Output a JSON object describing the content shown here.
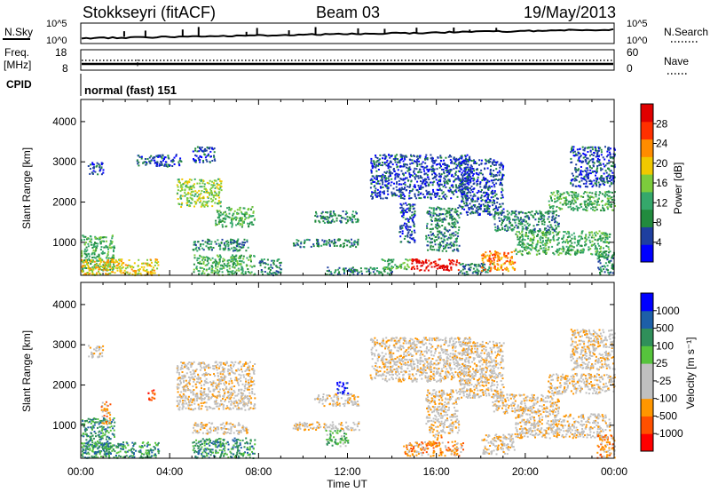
{
  "header": {
    "radar_title": "Stokkseyri (fitACF)",
    "beam_title": "Beam 03",
    "date": "19/May/2013"
  },
  "top_panels": {
    "nsky_label": "N.Sky",
    "nsky_ticks": [
      "10^5",
      "10^0"
    ],
    "nsearch_label": "N.Search",
    "nsearch_ticks": [
      "10^5",
      "10^0"
    ],
    "freq_label": "Freq.",
    "freq_units": "[MHz]",
    "freq_ticks": [
      "18",
      "8"
    ],
    "nave_label": "Nave",
    "nave_ticks": [
      "60",
      "0"
    ],
    "cpid_label": "CPID",
    "cpid_value": "normal (fast) 151"
  },
  "chart_data": [
    {
      "type": "heatmap",
      "name": "power",
      "ylabel": "Slant Range [km]",
      "y_ticks": [
        "1000",
        "2000",
        "3000",
        "4000"
      ],
      "ylim": [
        180,
        4550
      ],
      "xlim_hours": [
        0,
        24
      ],
      "colorbar_label": "Power [dB]",
      "colorbar_ticks": [
        "28",
        "24",
        "20",
        "16",
        "12",
        "8",
        "4"
      ],
      "colorbar_colors": [
        "#0000ff",
        "#1e3fa0",
        "#228b3e",
        "#35a86b",
        "#7ccc3c",
        "#f0c800",
        "#ff8c00",
        "#ff3000",
        "#e00000"
      ],
      "scatter_blocks": [
        {
          "t0": 0.0,
          "t1": 1.5,
          "r0": 300,
          "r1": 1200,
          "level": 3
        },
        {
          "t0": 0.0,
          "t1": 3.5,
          "r0": 200,
          "r1": 600,
          "level": 5
        },
        {
          "t0": 0.3,
          "t1": 1.0,
          "r0": 2700,
          "r1": 3000,
          "level": 1
        },
        {
          "t0": 2.5,
          "t1": 4.5,
          "r0": 2900,
          "r1": 3200,
          "level": 1
        },
        {
          "t0": 4.3,
          "t1": 6.3,
          "r0": 1900,
          "r1": 2600,
          "level": 4
        },
        {
          "t0": 6.0,
          "t1": 7.8,
          "r0": 1400,
          "r1": 1900,
          "level": 3
        },
        {
          "t0": 5.0,
          "t1": 6.0,
          "r0": 3000,
          "r1": 3400,
          "level": 1
        },
        {
          "t0": 5.0,
          "t1": 7.5,
          "r0": 800,
          "r1": 1100,
          "level": 2
        },
        {
          "t0": 5.0,
          "t1": 7.8,
          "r0": 200,
          "r1": 700,
          "level": 3
        },
        {
          "t0": 8.0,
          "t1": 9.0,
          "r0": 200,
          "r1": 600,
          "level": 2
        },
        {
          "t0": 9.5,
          "t1": 12.5,
          "r0": 900,
          "r1": 1100,
          "level": 2
        },
        {
          "t0": 10.5,
          "t1": 12.5,
          "r0": 1500,
          "r1": 1800,
          "level": 2
        },
        {
          "t0": 11.0,
          "t1": 14.0,
          "r0": 200,
          "r1": 400,
          "level": 2
        },
        {
          "t0": 13.0,
          "t1": 17.5,
          "r0": 2100,
          "r1": 3200,
          "level": 1
        },
        {
          "t0": 13.5,
          "t1": 14.8,
          "r0": 350,
          "r1": 600,
          "level": 3
        },
        {
          "t0": 14.3,
          "t1": 15.0,
          "r0": 1000,
          "r1": 2000,
          "level": 1
        },
        {
          "t0": 14.8,
          "t1": 17.0,
          "r0": 320,
          "r1": 600,
          "level": 8
        },
        {
          "t0": 15.5,
          "t1": 17.0,
          "r0": 800,
          "r1": 1900,
          "level": 2
        },
        {
          "t0": 17.0,
          "t1": 19.0,
          "r0": 1700,
          "r1": 3100,
          "level": 1
        },
        {
          "t0": 17.0,
          "t1": 18.5,
          "r0": 200,
          "r1": 500,
          "level": 2
        },
        {
          "t0": 18.0,
          "t1": 19.5,
          "r0": 300,
          "r1": 800,
          "level": 6
        },
        {
          "t0": 18.5,
          "t1": 21.5,
          "r0": 1300,
          "r1": 1800,
          "level": 2
        },
        {
          "t0": 19.5,
          "t1": 23.8,
          "r0": 700,
          "r1": 1300,
          "level": 3
        },
        {
          "t0": 21.0,
          "t1": 24.0,
          "r0": 1800,
          "r1": 2300,
          "level": 3
        },
        {
          "t0": 22.0,
          "t1": 24.0,
          "r0": 2400,
          "r1": 3400,
          "level": 1
        },
        {
          "t0": 23.2,
          "t1": 24.0,
          "r0": 200,
          "r1": 800,
          "level": 2
        }
      ]
    },
    {
      "type": "heatmap",
      "name": "velocity",
      "ylabel": "Slant Range [km]",
      "y_ticks": [
        "1000",
        "2000",
        "3000",
        "4000"
      ],
      "ylim": [
        180,
        4550
      ],
      "xlim_hours": [
        0,
        24
      ],
      "x_ticks": [
        "00:00",
        "04:00",
        "08:00",
        "12:00",
        "16:00",
        "20:00",
        "00:00"
      ],
      "xlabel": "Time UT",
      "colorbar_label": "Velocity [m s⁻¹]",
      "colorbar_ticks": [
        "1000",
        "500",
        "100",
        "25",
        "-25",
        "-100",
        "-500",
        "-1000"
      ],
      "colorbar_colors": [
        "#ff0000",
        "#ff5000",
        "#ff9600",
        "#c0c0c0",
        "#c0c0c0",
        "#56c43c",
        "#2f8f5a",
        "#1d5fa8",
        "#0000ff"
      ],
      "scatter_blocks": [
        {
          "t0": 0.0,
          "t1": 1.5,
          "r0": 300,
          "r1": 1200,
          "level": 6
        },
        {
          "t0": 0.0,
          "t1": 3.5,
          "r0": 200,
          "r1": 600,
          "level": 6
        },
        {
          "t0": 0.9,
          "t1": 1.3,
          "r0": 1000,
          "r1": 1600,
          "level": 2
        },
        {
          "t0": 0.3,
          "t1": 1.0,
          "r0": 2700,
          "r1": 3000,
          "level": 3
        },
        {
          "t0": 3.0,
          "t1": 3.3,
          "r0": 1600,
          "r1": 1900,
          "level": 1
        },
        {
          "t0": 4.3,
          "t1": 7.8,
          "r0": 1400,
          "r1": 2600,
          "level": 3
        },
        {
          "t0": 5.0,
          "t1": 7.5,
          "r0": 800,
          "r1": 1100,
          "level": 3
        },
        {
          "t0": 5.0,
          "t1": 7.8,
          "r0": 200,
          "r1": 700,
          "level": 6
        },
        {
          "t0": 9.5,
          "t1": 12.5,
          "r0": 900,
          "r1": 1100,
          "level": 3
        },
        {
          "t0": 11.0,
          "t1": 12.0,
          "r0": 500,
          "r1": 900,
          "level": 5
        },
        {
          "t0": 10.5,
          "t1": 12.5,
          "r0": 1500,
          "r1": 1800,
          "level": 3
        },
        {
          "t0": 11.5,
          "t1": 12.0,
          "r0": 1800,
          "r1": 2100,
          "level": 8
        },
        {
          "t0": 13.0,
          "t1": 17.5,
          "r0": 2100,
          "r1": 3200,
          "level": 3
        },
        {
          "t0": 14.5,
          "t1": 17.2,
          "r0": 250,
          "r1": 620,
          "level": 2
        },
        {
          "t0": 15.5,
          "t1": 17.0,
          "r0": 800,
          "r1": 1900,
          "level": 3
        },
        {
          "t0": 15.8,
          "t1": 16.2,
          "r0": 650,
          "r1": 800,
          "level": 2
        },
        {
          "t0": 17.0,
          "t1": 19.0,
          "r0": 1700,
          "r1": 3100,
          "level": 3
        },
        {
          "t0": 18.0,
          "t1": 19.5,
          "r0": 300,
          "r1": 800,
          "level": 3
        },
        {
          "t0": 18.5,
          "t1": 21.5,
          "r0": 1300,
          "r1": 1800,
          "level": 3
        },
        {
          "t0": 19.5,
          "t1": 23.8,
          "r0": 700,
          "r1": 1300,
          "level": 3
        },
        {
          "t0": 21.0,
          "t1": 24.0,
          "r0": 1800,
          "r1": 2300,
          "level": 3
        },
        {
          "t0": 22.0,
          "t1": 24.0,
          "r0": 2400,
          "r1": 3400,
          "level": 3
        },
        {
          "t0": 23.2,
          "t1": 24.0,
          "r0": 200,
          "r1": 800,
          "level": 2
        }
      ]
    }
  ]
}
